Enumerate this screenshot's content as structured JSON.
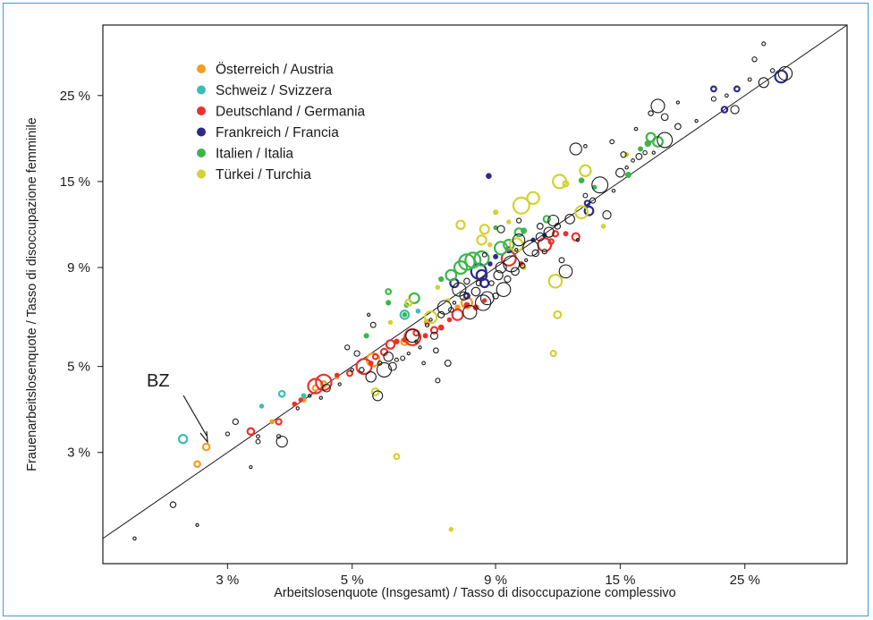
{
  "chart_data": {
    "type": "scatter",
    "xlabel": "Arbeitslosenquote (Insgesamt) / Tasso di disoccupazione complessivo",
    "ylabel": "Frauenarbeitslosenquote / Tasso di disoccupazione femminile",
    "x_scale": "log",
    "y_scale": "log",
    "xlim": [
      1.8,
      38
    ],
    "ylim": [
      1.55,
      38
    ],
    "x_ticks": [
      {
        "value": 3,
        "label": "3 %"
      },
      {
        "value": 5,
        "label": "5 %"
      },
      {
        "value": 9,
        "label": "9 %"
      },
      {
        "value": 15,
        "label": "15 %"
      },
      {
        "value": 25,
        "label": "25 %"
      }
    ],
    "y_ticks": [
      {
        "value": 3,
        "label": "3 %"
      },
      {
        "value": 5,
        "label": "5 %"
      },
      {
        "value": 9,
        "label": "9 %"
      },
      {
        "value": 15,
        "label": "15 %"
      },
      {
        "value": 25,
        "label": "25 %"
      }
    ],
    "reference_line": "y = x",
    "annotation": {
      "text": "BZ",
      "x": 3.45,
      "y": 3.95
    },
    "legend_position": "top-left",
    "series": [
      {
        "name": "Österreich / Austria",
        "color": "#f39c1f",
        "points": [
          [
            2.65,
            2.8
          ],
          [
            2.75,
            3.1
          ],
          [
            3.6,
            3.6
          ],
          [
            4.1,
            4.1
          ],
          [
            4.3,
            4.4
          ],
          [
            4.45,
            4.5
          ],
          [
            4.7,
            4.7
          ],
          [
            5.45,
            5.2
          ],
          [
            6.2,
            5.8
          ],
          [
            6.8,
            6.5
          ],
          [
            7.7,
            7.1
          ],
          [
            8.0,
            7.3
          ]
        ]
      },
      {
        "name": "Schweiz / Svizzera",
        "color": "#3cbdb8",
        "points": [
          [
            2.5,
            3.25
          ],
          [
            3.45,
            3.95
          ],
          [
            3.75,
            4.25
          ],
          [
            4.1,
            4.2
          ],
          [
            6.2,
            6.8
          ],
          [
            6.55,
            6.95
          ]
        ]
      },
      {
        "name": "Deutschland / Germania",
        "color": "#e8332f",
        "points": [
          [
            3.3,
            3.4
          ],
          [
            3.7,
            3.6
          ],
          [
            3.95,
            4.0
          ],
          [
            4.05,
            4.1
          ],
          [
            4.3,
            4.45
          ],
          [
            4.45,
            4.55
          ],
          [
            4.7,
            4.75
          ],
          [
            4.95,
            4.8
          ],
          [
            5.25,
            5.0
          ],
          [
            5.4,
            5.1
          ],
          [
            5.5,
            5.3
          ],
          [
            5.7,
            5.45
          ],
          [
            5.85,
            5.7
          ],
          [
            6.0,
            5.8
          ],
          [
            6.2,
            5.85
          ],
          [
            6.4,
            5.95
          ],
          [
            6.5,
            6.1
          ],
          [
            6.75,
            6.0
          ],
          [
            7.0,
            6.2
          ],
          [
            7.2,
            6.3
          ],
          [
            7.45,
            6.6
          ],
          [
            7.7,
            6.8
          ],
          [
            8.0,
            7.2
          ],
          [
            8.3,
            7.1
          ],
          [
            8.6,
            7.4
          ],
          [
            9.5,
            9.5
          ],
          [
            10.0,
            9.2
          ],
          [
            11.0,
            10.3
          ],
          [
            11.5,
            11.0
          ],
          [
            12.0,
            11.0
          ],
          [
            12.5,
            10.8
          ],
          [
            11.3,
            10.5
          ]
        ]
      },
      {
        "name": "Frankreich / Francia",
        "color": "#2e2a8a",
        "points": [
          [
            8.5,
            8.6
          ],
          [
            8.6,
            8.2
          ],
          [
            8.8,
            9.2
          ],
          [
            9.0,
            9.6
          ],
          [
            9.5,
            10.0
          ],
          [
            10.5,
            10.6
          ],
          [
            11.0,
            10.9
          ],
          [
            13.1,
            13.2
          ],
          [
            13.2,
            12.6
          ],
          [
            7.6,
            8.2
          ],
          [
            8.4,
            8.8
          ],
          [
            8.75,
            15.5
          ],
          [
            22.0,
            26.0
          ],
          [
            23.0,
            23.0
          ],
          [
            24.2,
            26.0
          ],
          [
            29.0,
            28.0
          ],
          [
            8.0,
            7.6
          ]
        ]
      },
      {
        "name": "Italien / Italia",
        "color": "#3cb64a",
        "points": [
          [
            5.8,
            7.8
          ],
          [
            5.8,
            7.3
          ],
          [
            6.25,
            7.2
          ],
          [
            6.45,
            7.5
          ],
          [
            6.2,
            6.8
          ],
          [
            7.2,
            8.4
          ],
          [
            7.5,
            8.6
          ],
          [
            7.8,
            9.0
          ],
          [
            8.0,
            9.3
          ],
          [
            8.5,
            9.5
          ],
          [
            9.2,
            10.1
          ],
          [
            9.5,
            10.3
          ],
          [
            9.9,
            11.1
          ],
          [
            11.1,
            12.0
          ],
          [
            13.5,
            14.5
          ],
          [
            12.8,
            15.1
          ],
          [
            15.5,
            15.6
          ],
          [
            16.3,
            18.2
          ],
          [
            16.8,
            18.8
          ],
          [
            17.0,
            19.5
          ],
          [
            17.5,
            19.0
          ],
          [
            5.3,
            6.0
          ],
          [
            8.2,
            9.4
          ],
          [
            9.0,
            11.4
          ],
          [
            10.1,
            11.2
          ]
        ]
      },
      {
        "name": "Türkei / Turchia",
        "color": "#d2d232",
        "points": [
          [
            5.5,
            4.3
          ],
          [
            6.0,
            2.93
          ],
          [
            7.5,
            1.9
          ],
          [
            10.0,
            13.0
          ],
          [
            12.0,
            14.8
          ],
          [
            11.5,
            8.3
          ],
          [
            11.6,
            6.8
          ],
          [
            11.4,
            5.4
          ],
          [
            14.0,
            11.5
          ],
          [
            13.0,
            16.0
          ],
          [
            11.7,
            15.0
          ],
          [
            9.0,
            12.5
          ],
          [
            9.5,
            11.8
          ],
          [
            8.8,
            10.3
          ],
          [
            8.5,
            10.6
          ],
          [
            8.6,
            11.3
          ],
          [
            7.8,
            11.6
          ],
          [
            9.8,
            10.3
          ],
          [
            10.1,
            9.0
          ],
          [
            6.9,
            6.7
          ],
          [
            7.1,
            8.0
          ],
          [
            7.4,
            7.4
          ],
          [
            5.85,
            6.5
          ],
          [
            15.4,
            17.6
          ],
          [
            6.3,
            7.3
          ],
          [
            10.5,
            13.6
          ],
          [
            12.8,
            12.5
          ]
        ]
      },
      {
        "name": "",
        "color": "#1a1a1a",
        "points": [
          [
            2.05,
            1.8
          ],
          [
            2.4,
            2.2
          ],
          [
            2.65,
            1.95
          ],
          [
            3.0,
            3.35
          ],
          [
            3.1,
            3.6
          ],
          [
            3.3,
            2.75
          ],
          [
            3.4,
            3.2
          ],
          [
            3.4,
            3.3
          ],
          [
            3.7,
            3.3
          ],
          [
            3.75,
            3.2
          ],
          [
            4.0,
            3.9
          ],
          [
            4.2,
            4.2
          ],
          [
            4.4,
            4.15
          ],
          [
            4.5,
            4.4
          ],
          [
            4.75,
            4.5
          ],
          [
            4.9,
            5.6
          ],
          [
            5.0,
            4.9
          ],
          [
            5.1,
            5.4
          ],
          [
            5.2,
            4.9
          ],
          [
            5.35,
            6.8
          ],
          [
            5.4,
            4.7
          ],
          [
            5.45,
            6.4
          ],
          [
            5.55,
            4.2
          ],
          [
            5.6,
            5.1
          ],
          [
            5.7,
            4.9
          ],
          [
            5.8,
            5.3
          ],
          [
            5.9,
            5.0
          ],
          [
            6.0,
            5.2
          ],
          [
            6.15,
            5.25
          ],
          [
            6.3,
            5.4
          ],
          [
            6.4,
            6.0
          ],
          [
            6.5,
            5.8
          ],
          [
            6.6,
            5.6
          ],
          [
            6.7,
            5.1
          ],
          [
            6.8,
            6.4
          ],
          [
            6.9,
            6.6
          ],
          [
            7.0,
            6.0
          ],
          [
            7.05,
            5.5
          ],
          [
            7.1,
            4.6
          ],
          [
            7.2,
            6.8
          ],
          [
            7.3,
            7.1
          ],
          [
            7.4,
            5.1
          ],
          [
            7.5,
            7.0
          ],
          [
            7.6,
            7.3
          ],
          [
            7.75,
            7.9
          ],
          [
            7.9,
            7.6
          ],
          [
            8.0,
            8.3
          ],
          [
            8.1,
            6.9
          ],
          [
            8.3,
            7.8
          ],
          [
            8.4,
            8.2
          ],
          [
            8.55,
            7.3
          ],
          [
            8.7,
            7.5
          ],
          [
            8.85,
            8.2
          ],
          [
            9.0,
            7.6
          ],
          [
            9.1,
            8.6
          ],
          [
            9.2,
            9.0
          ],
          [
            9.3,
            7.9
          ],
          [
            9.45,
            8.4
          ],
          [
            9.6,
            9.2
          ],
          [
            9.75,
            8.8
          ],
          [
            9.9,
            10.6
          ],
          [
            10.05,
            9.1
          ],
          [
            10.2,
            9.4
          ],
          [
            10.4,
            10.1
          ],
          [
            10.6,
            9.8
          ],
          [
            10.8,
            10.8
          ],
          [
            11.0,
            9.9
          ],
          [
            11.2,
            11.1
          ],
          [
            11.4,
            11.9
          ],
          [
            11.6,
            11.5
          ],
          [
            11.8,
            9.4
          ],
          [
            12.0,
            8.8
          ],
          [
            12.2,
            12.0
          ],
          [
            12.6,
            10.6
          ],
          [
            13.0,
            13.8
          ],
          [
            13.4,
            13.4
          ],
          [
            13.8,
            14.7
          ],
          [
            14.2,
            12.3
          ],
          [
            14.6,
            14.2
          ],
          [
            15.0,
            15.8
          ],
          [
            15.4,
            16.3
          ],
          [
            15.8,
            17.0
          ],
          [
            16.2,
            17.4
          ],
          [
            16.6,
            17.8
          ],
          [
            17.2,
            17.8
          ],
          [
            18.0,
            19.2
          ],
          [
            19.0,
            20.8
          ],
          [
            20.5,
            21.5
          ],
          [
            22.0,
            24.5
          ],
          [
            23.2,
            25.0
          ],
          [
            24.0,
            23.0
          ],
          [
            25.5,
            27.5
          ],
          [
            27.0,
            27.0
          ],
          [
            28.0,
            29.0
          ],
          [
            29.5,
            28.5
          ],
          [
            9.2,
            11.3
          ],
          [
            9.9,
            11.9
          ],
          [
            12.5,
            18.2
          ],
          [
            13.0,
            18.5
          ],
          [
            14.5,
            19.0
          ],
          [
            17.0,
            22.5
          ],
          [
            17.5,
            23.5
          ],
          [
            18.0,
            22.0
          ],
          [
            19.0,
            24.0
          ],
          [
            16.0,
            20.5
          ],
          [
            15.2,
            17.6
          ],
          [
            27.0,
            34.0
          ],
          [
            26.0,
            31.0
          ],
          [
            10.8,
            11.5
          ],
          [
            8.6,
            9.7
          ],
          [
            9.8,
            10.0
          ]
        ]
      }
    ]
  }
}
